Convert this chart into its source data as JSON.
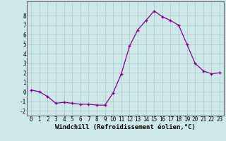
{
  "x": [
    0,
    1,
    2,
    3,
    4,
    5,
    6,
    7,
    8,
    9,
    10,
    11,
    12,
    13,
    14,
    15,
    16,
    17,
    18,
    19,
    20,
    21,
    22,
    23
  ],
  "y": [
    0.2,
    0.0,
    -0.5,
    -1.2,
    -1.1,
    -1.2,
    -1.3,
    -1.3,
    -1.4,
    -1.4,
    -0.1,
    1.9,
    4.8,
    6.5,
    7.5,
    8.5,
    7.9,
    7.5,
    7.0,
    5.0,
    3.0,
    2.2,
    1.9,
    2.0
  ],
  "line_color": "#880088",
  "marker": "+",
  "marker_color": "#880088",
  "bg_color": "#cce8e8",
  "grid_color": "#aacccc",
  "xlabel": "Windchill (Refroidissement éolien,°C)",
  "xlabel_fontsize": 6.5,
  "ylim": [
    -2.5,
    9.5
  ],
  "xlim": [
    -0.5,
    23.5
  ],
  "xticks": [
    0,
    1,
    2,
    3,
    4,
    5,
    6,
    7,
    8,
    9,
    10,
    11,
    12,
    13,
    14,
    15,
    16,
    17,
    18,
    19,
    20,
    21,
    22,
    23
  ],
  "yticks": [
    -2,
    -1,
    0,
    1,
    2,
    3,
    4,
    5,
    6,
    7,
    8
  ],
  "tick_fontsize": 5.5
}
